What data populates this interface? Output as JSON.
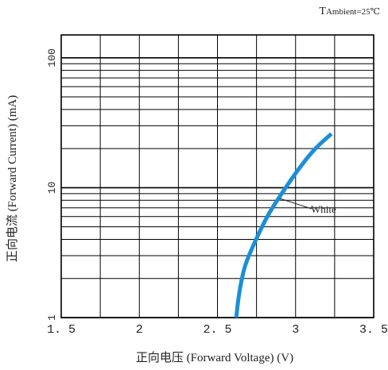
{
  "chart_data": {
    "type": "line",
    "annotation_top": {
      "main": "T",
      "sub": "Ambient=25℃"
    },
    "xlabel": "正向电压 (Forward Voltage) (V)",
    "ylabel": "正向电流 (Forward Current) (mA)",
    "x_scale": "linear",
    "y_scale": "log",
    "xlim": [
      1.5,
      3.5
    ],
    "ylim": [
      1,
      150
    ],
    "x_ticks": [
      1.5,
      2,
      2.5,
      3,
      3.5
    ],
    "x_tick_labels": [
      "1. 5",
      "2",
      "2. 5",
      "3",
      "3. 5"
    ],
    "y_ticks": [
      1,
      10,
      100
    ],
    "y_tick_labels": [
      "1",
      "10",
      "100"
    ],
    "grid": true,
    "series": [
      {
        "name": "White",
        "color": "#1a8fd8",
        "x": [
          2.62,
          2.64,
          2.67,
          2.71,
          2.77,
          2.83,
          2.9,
          2.97,
          3.04,
          3.1,
          3.16,
          3.23
        ],
        "y": [
          1.0,
          1.6,
          2.4,
          3.2,
          4.6,
          6.4,
          8.6,
          11.5,
          15.0,
          18.5,
          22.0,
          26.0
        ]
      }
    ]
  }
}
